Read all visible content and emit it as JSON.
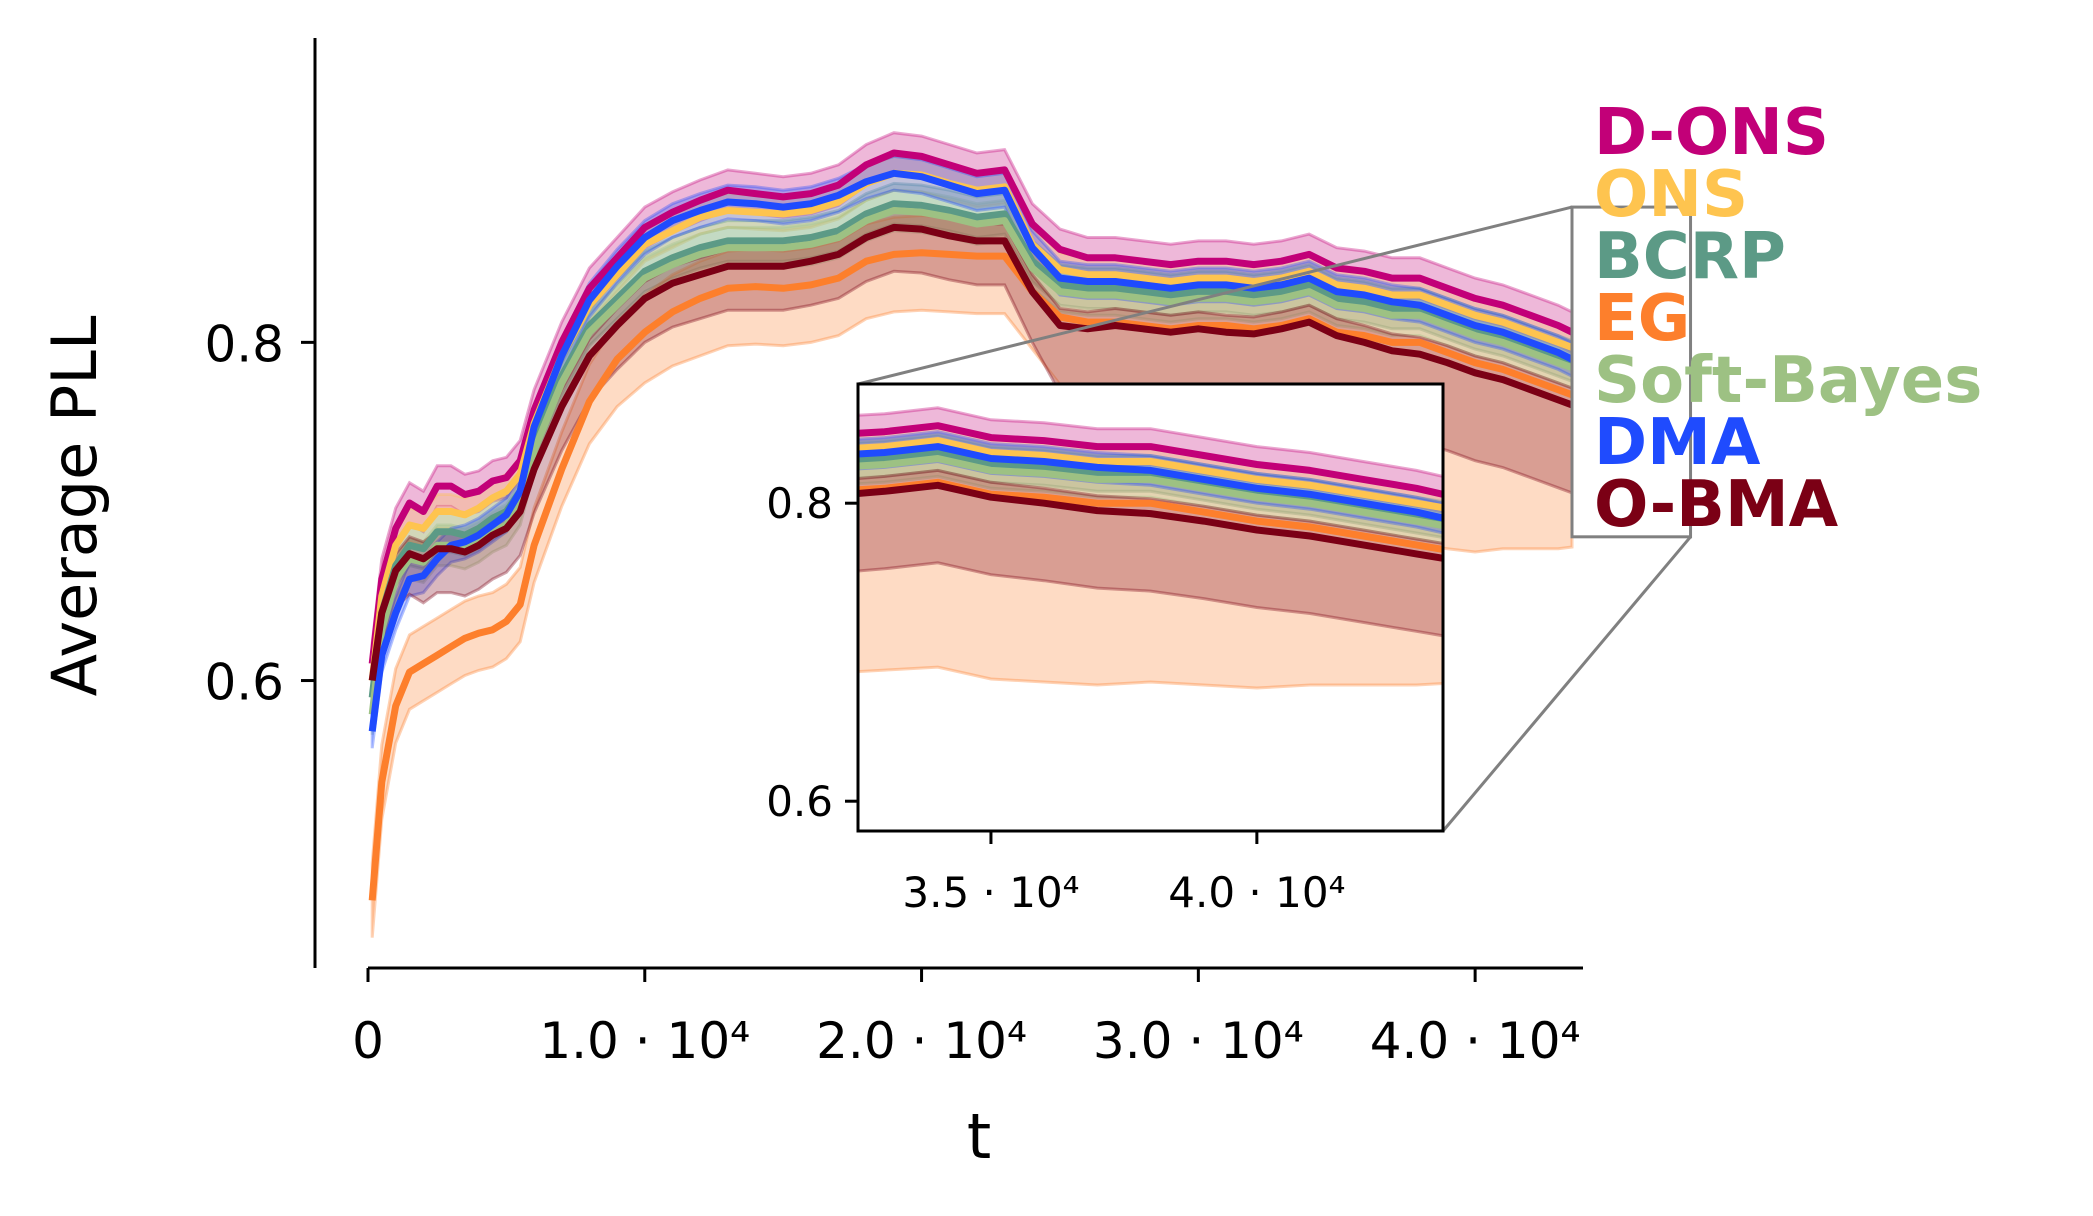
{
  "chart_data": {
    "type": "line",
    "title": "",
    "xlabel": "t",
    "ylabel": "Average PLL",
    "xlim": [
      0,
      43500
    ],
    "ylim": [
      0.43,
      0.98
    ],
    "x_ticks": [
      {
        "value": 0,
        "label": "0"
      },
      {
        "value": 10000,
        "label": "1.0 · 10⁴"
      },
      {
        "value": 20000,
        "label": "2.0 · 10⁴"
      },
      {
        "value": 30000,
        "label": "3.0 · 10⁴"
      },
      {
        "value": 40000,
        "label": "4.0 · 10⁴"
      }
    ],
    "y_ticks": [
      {
        "value": 0.6,
        "label": "0.6"
      },
      {
        "value": 0.8,
        "label": "0.8"
      }
    ],
    "x": [
      150,
      500,
      1000,
      1500,
      2000,
      2500,
      3000,
      3500,
      4000,
      4500,
      5000,
      5500,
      6000,
      7000,
      8000,
      9000,
      10000,
      11000,
      12000,
      13000,
      14000,
      15000,
      16000,
      17000,
      18000,
      19000,
      20000,
      21000,
      22000,
      23000,
      24000,
      25000,
      26000,
      27000,
      28000,
      29000,
      30000,
      31000,
      32000,
      33000,
      34000,
      35000,
      36000,
      37000,
      38000,
      39000,
      40000,
      41000,
      42000,
      43000,
      43500
    ],
    "series": [
      {
        "name": "D-ONS",
        "color": "#c20078",
        "band": 0.012,
        "values": [
          0.61,
          0.66,
          0.69,
          0.705,
          0.7,
          0.715,
          0.715,
          0.71,
          0.712,
          0.718,
          0.72,
          0.73,
          0.76,
          0.8,
          0.832,
          0.85,
          0.868,
          0.877,
          0.884,
          0.89,
          0.888,
          0.886,
          0.888,
          0.893,
          0.905,
          0.912,
          0.91,
          0.905,
          0.9,
          0.902,
          0.87,
          0.855,
          0.85,
          0.85,
          0.848,
          0.846,
          0.848,
          0.848,
          0.846,
          0.848,
          0.852,
          0.844,
          0.842,
          0.838,
          0.838,
          0.832,
          0.826,
          0.822,
          0.816,
          0.81,
          0.806
        ]
      },
      {
        "name": "ONS",
        "color": "#fec44f",
        "band": 0.01,
        "values": [
          0.6,
          0.65,
          0.68,
          0.692,
          0.69,
          0.7,
          0.7,
          0.698,
          0.702,
          0.708,
          0.712,
          0.722,
          0.752,
          0.792,
          0.822,
          0.84,
          0.858,
          0.866,
          0.874,
          0.878,
          0.877,
          0.876,
          0.878,
          0.883,
          0.894,
          0.9,
          0.899,
          0.894,
          0.89,
          0.892,
          0.858,
          0.843,
          0.84,
          0.84,
          0.838,
          0.836,
          0.838,
          0.838,
          0.836,
          0.838,
          0.842,
          0.834,
          0.832,
          0.828,
          0.828,
          0.822,
          0.816,
          0.812,
          0.806,
          0.8,
          0.797
        ]
      },
      {
        "name": "BCRP",
        "color": "#5c9a86",
        "band": 0.012,
        "values": [
          0.59,
          0.64,
          0.668,
          0.68,
          0.678,
          0.688,
          0.688,
          0.686,
          0.69,
          0.696,
          0.7,
          0.712,
          0.742,
          0.78,
          0.81,
          0.826,
          0.842,
          0.85,
          0.856,
          0.86,
          0.86,
          0.86,
          0.862,
          0.866,
          0.876,
          0.882,
          0.881,
          0.878,
          0.874,
          0.876,
          0.848,
          0.834,
          0.832,
          0.832,
          0.83,
          0.828,
          0.83,
          0.83,
          0.828,
          0.83,
          0.834,
          0.826,
          0.824,
          0.82,
          0.82,
          0.814,
          0.808,
          0.804,
          0.798,
          0.792,
          0.789
        ]
      },
      {
        "name": "EG",
        "color": "#fd7f2c",
        "band": 0.022,
        "lower_band": [
          0.022,
          0.022,
          0.022,
          0.022,
          0.022,
          0.022,
          0.022,
          0.022,
          0.022,
          0.022,
          0.022,
          0.022,
          0.022,
          0.022,
          0.025,
          0.028,
          0.03,
          0.032,
          0.034,
          0.034,
          0.034,
          0.034,
          0.034,
          0.034,
          0.034,
          0.034,
          0.034,
          0.034,
          0.034,
          0.034,
          0.034,
          0.04,
          0.06,
          0.09,
          0.11,
          0.115,
          0.118,
          0.12,
          0.122,
          0.122,
          0.124,
          0.124,
          0.124,
          0.122,
          0.12,
          0.116,
          0.112,
          0.106,
          0.1,
          0.094,
          0.09
        ],
        "values": [
          0.47,
          0.54,
          0.585,
          0.605,
          0.61,
          0.615,
          0.62,
          0.625,
          0.628,
          0.63,
          0.635,
          0.645,
          0.68,
          0.725,
          0.765,
          0.79,
          0.806,
          0.818,
          0.826,
          0.832,
          0.833,
          0.832,
          0.834,
          0.838,
          0.848,
          0.852,
          0.853,
          0.852,
          0.851,
          0.851,
          0.83,
          0.815,
          0.812,
          0.812,
          0.81,
          0.808,
          0.81,
          0.81,
          0.808,
          0.81,
          0.814,
          0.806,
          0.804,
          0.8,
          0.8,
          0.794,
          0.788,
          0.784,
          0.778,
          0.772,
          0.769
        ]
      },
      {
        "name": "Soft-Bayes",
        "color": "#9dc183",
        "band": 0.012,
        "values": [
          0.58,
          0.63,
          0.66,
          0.672,
          0.67,
          0.68,
          0.68,
          0.678,
          0.682,
          0.688,
          0.692,
          0.704,
          0.736,
          0.776,
          0.806,
          0.822,
          0.838,
          0.846,
          0.852,
          0.856,
          0.856,
          0.856,
          0.858,
          0.862,
          0.872,
          0.878,
          0.877,
          0.874,
          0.87,
          0.872,
          0.844,
          0.83,
          0.828,
          0.828,
          0.826,
          0.824,
          0.826,
          0.826,
          0.824,
          0.826,
          0.83,
          0.822,
          0.82,
          0.816,
          0.816,
          0.81,
          0.804,
          0.8,
          0.794,
          0.788,
          0.785
        ]
      },
      {
        "name": "DMA",
        "color": "#1f4bfe",
        "band": 0.01,
        "values": [
          0.57,
          0.615,
          0.64,
          0.66,
          0.662,
          0.672,
          0.68,
          0.682,
          0.686,
          0.692,
          0.698,
          0.712,
          0.75,
          0.792,
          0.825,
          0.845,
          0.862,
          0.872,
          0.878,
          0.883,
          0.882,
          0.88,
          0.882,
          0.887,
          0.895,
          0.9,
          0.898,
          0.893,
          0.888,
          0.89,
          0.856,
          0.838,
          0.836,
          0.836,
          0.834,
          0.832,
          0.834,
          0.834,
          0.832,
          0.834,
          0.838,
          0.83,
          0.828,
          0.824,
          0.822,
          0.816,
          0.81,
          0.806,
          0.8,
          0.794,
          0.79
        ]
      },
      {
        "name": "O-BMA",
        "color": "#7b0015",
        "band": 0.01,
        "lower_band": [
          0.02,
          0.02,
          0.022,
          0.024,
          0.026,
          0.026,
          0.026,
          0.026,
          0.026,
          0.026,
          0.026,
          0.026,
          0.026,
          0.026,
          0.026,
          0.026,
          0.026,
          0.026,
          0.026,
          0.026,
          0.026,
          0.026,
          0.026,
          0.026,
          0.026,
          0.026,
          0.026,
          0.026,
          0.026,
          0.026,
          0.03,
          0.04,
          0.05,
          0.052,
          0.052,
          0.052,
          0.052,
          0.052,
          0.052,
          0.052,
          0.052,
          0.052,
          0.052,
          0.052,
          0.052,
          0.052,
          0.052,
          0.052,
          0.052,
          0.052,
          0.052
        ],
        "values": [
          0.6,
          0.64,
          0.665,
          0.675,
          0.672,
          0.678,
          0.678,
          0.676,
          0.68,
          0.686,
          0.69,
          0.7,
          0.725,
          0.762,
          0.792,
          0.81,
          0.826,
          0.835,
          0.84,
          0.845,
          0.845,
          0.845,
          0.848,
          0.852,
          0.862,
          0.868,
          0.867,
          0.863,
          0.86,
          0.86,
          0.83,
          0.81,
          0.808,
          0.81,
          0.808,
          0.806,
          0.808,
          0.806,
          0.805,
          0.808,
          0.812,
          0.804,
          0.8,
          0.795,
          0.793,
          0.788,
          0.782,
          0.778,
          0.772,
          0.766,
          0.763
        ]
      }
    ],
    "legend": {
      "placement": "right",
      "entries": [
        "D-ONS",
        "ONS",
        "BCRP",
        "EG",
        "Soft-Bayes",
        "DMA",
        "O-BMA"
      ]
    },
    "inset": {
      "xlim": [
        32500,
        43500
      ],
      "ylim": [
        0.58,
        0.88
      ],
      "x_ticks": [
        {
          "value": 35000,
          "label": "3.5 · 10⁴"
        },
        {
          "value": 40000,
          "label": "4.0 · 10⁴"
        }
      ],
      "y_ticks": [
        {
          "value": 0.6,
          "label": "0.6"
        },
        {
          "value": 0.8,
          "label": "0.8"
        }
      ],
      "zoom_region": {
        "x": [
          32500,
          43500
        ],
        "y": [
          0.685,
          0.88
        ]
      }
    },
    "grid": false
  }
}
